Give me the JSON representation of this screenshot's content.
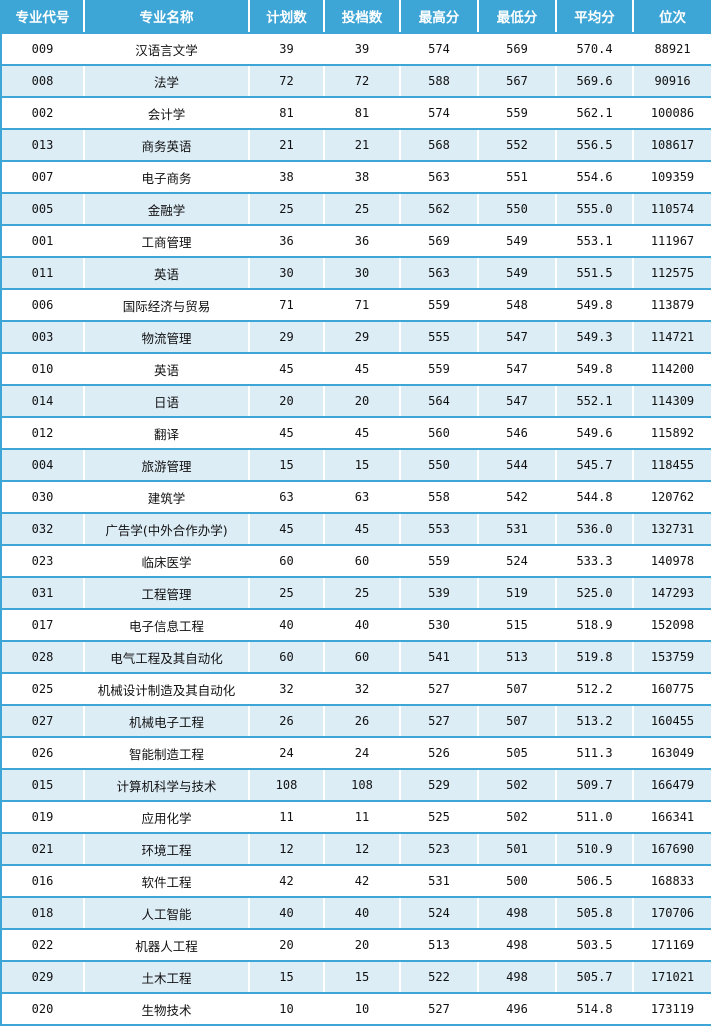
{
  "table": {
    "headers": [
      "专业代号",
      "专业名称",
      "计划数",
      "投档数",
      "最高分",
      "最低分",
      "平均分",
      "位次"
    ],
    "rows": [
      [
        "009",
        "汉语言文学",
        "39",
        "39",
        "574",
        "569",
        "570.4",
        "88921"
      ],
      [
        "008",
        "法学",
        "72",
        "72",
        "588",
        "567",
        "569.6",
        "90916"
      ],
      [
        "002",
        "会计学",
        "81",
        "81",
        "574",
        "559",
        "562.1",
        "100086"
      ],
      [
        "013",
        "商务英语",
        "21",
        "21",
        "568",
        "552",
        "556.5",
        "108617"
      ],
      [
        "007",
        "电子商务",
        "38",
        "38",
        "563",
        "551",
        "554.6",
        "109359"
      ],
      [
        "005",
        "金融学",
        "25",
        "25",
        "562",
        "550",
        "555.0",
        "110574"
      ],
      [
        "001",
        "工商管理",
        "36",
        "36",
        "569",
        "549",
        "553.1",
        "111967"
      ],
      [
        "011",
        "英语",
        "30",
        "30",
        "563",
        "549",
        "551.5",
        "112575"
      ],
      [
        "006",
        "国际经济与贸易",
        "71",
        "71",
        "559",
        "548",
        "549.8",
        "113879"
      ],
      [
        "003",
        "物流管理",
        "29",
        "29",
        "555",
        "547",
        "549.3",
        "114721"
      ],
      [
        "010",
        "英语",
        "45",
        "45",
        "559",
        "547",
        "549.8",
        "114200"
      ],
      [
        "014",
        "日语",
        "20",
        "20",
        "564",
        "547",
        "552.1",
        "114309"
      ],
      [
        "012",
        "翻译",
        "45",
        "45",
        "560",
        "546",
        "549.6",
        "115892"
      ],
      [
        "004",
        "旅游管理",
        "15",
        "15",
        "550",
        "544",
        "545.7",
        "118455"
      ],
      [
        "030",
        "建筑学",
        "63",
        "63",
        "558",
        "542",
        "544.8",
        "120762"
      ],
      [
        "032",
        "广告学(中外合作办学)",
        "45",
        "45",
        "553",
        "531",
        "536.0",
        "132731"
      ],
      [
        "023",
        "临床医学",
        "60",
        "60",
        "559",
        "524",
        "533.3",
        "140978"
      ],
      [
        "031",
        "工程管理",
        "25",
        "25",
        "539",
        "519",
        "525.0",
        "147293"
      ],
      [
        "017",
        "电子信息工程",
        "40",
        "40",
        "530",
        "515",
        "518.9",
        "152098"
      ],
      [
        "028",
        "电气工程及其自动化",
        "60",
        "60",
        "541",
        "513",
        "519.8",
        "153759"
      ],
      [
        "025",
        "机械设计制造及其自动化",
        "32",
        "32",
        "527",
        "507",
        "512.2",
        "160775"
      ],
      [
        "027",
        "机械电子工程",
        "26",
        "26",
        "527",
        "507",
        "513.2",
        "160455"
      ],
      [
        "026",
        "智能制造工程",
        "24",
        "24",
        "526",
        "505",
        "511.3",
        "163049"
      ],
      [
        "015",
        "计算机科学与技术",
        "108",
        "108",
        "529",
        "502",
        "509.7",
        "166479"
      ],
      [
        "019",
        "应用化学",
        "11",
        "11",
        "525",
        "502",
        "511.0",
        "166341"
      ],
      [
        "021",
        "环境工程",
        "12",
        "12",
        "523",
        "501",
        "510.9",
        "167690"
      ],
      [
        "016",
        "软件工程",
        "42",
        "42",
        "531",
        "500",
        "506.5",
        "168833"
      ],
      [
        "018",
        "人工智能",
        "40",
        "40",
        "524",
        "498",
        "505.8",
        "170706"
      ],
      [
        "022",
        "机器人工程",
        "20",
        "20",
        "513",
        "498",
        "503.5",
        "171169"
      ],
      [
        "029",
        "土木工程",
        "15",
        "15",
        "522",
        "498",
        "505.7",
        "171021"
      ],
      [
        "020",
        "生物技术",
        "10",
        "10",
        "527",
        "496",
        "514.8",
        "173119"
      ]
    ]
  },
  "colors": {
    "header_bg": "#3ea6d6",
    "alt_row_bg": "#ddedf6",
    "border": "#3ea6d6"
  }
}
